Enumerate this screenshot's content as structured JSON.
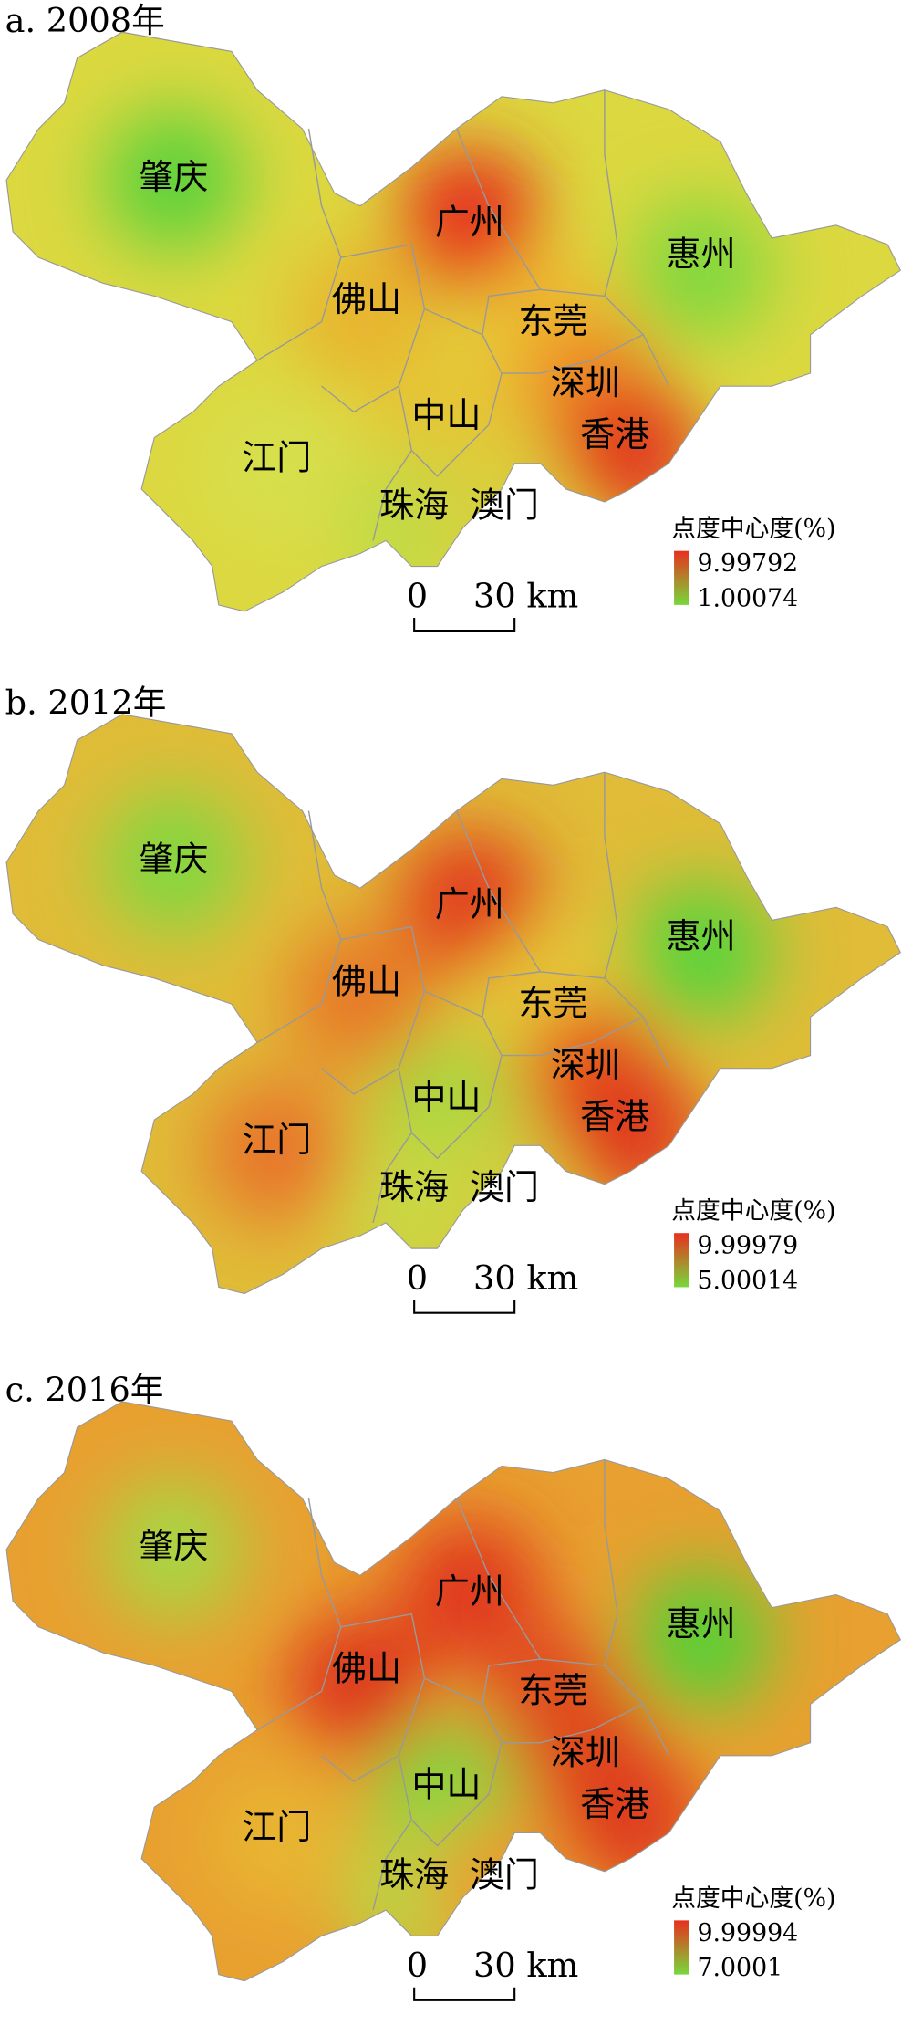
{
  "panels": [
    {
      "title": "a. 2008年",
      "base_color": "#dcd840",
      "cities": [
        {
          "name": "肇庆",
          "color": "#5cd23a"
        },
        {
          "name": "广州",
          "color": "#e62c1c"
        },
        {
          "name": "惠州",
          "color": "#80d83c"
        },
        {
          "name": "佛山",
          "color": "#e8b42e"
        },
        {
          "name": "东莞",
          "color": "#eec032"
        },
        {
          "name": "深圳",
          "color": "#ee8a28"
        },
        {
          "name": "香港",
          "color": "#e2361c"
        },
        {
          "name": "中山",
          "color": "#e6c434"
        },
        {
          "name": "江门",
          "color": "#d6e04e"
        },
        {
          "name": "珠海",
          "color": "#bcdc46"
        },
        {
          "name": "澳门",
          "color": "#d8d03e"
        }
      ],
      "legend": {
        "title": "点度中心度(%)",
        "max": 9.99792,
        "min": 1.00074,
        "colors": [
          "#e8301e",
          "#78d83a"
        ]
      },
      "scale": {
        "start": "0",
        "end": "30 km"
      }
    },
    {
      "title": "b. 2012年",
      "base_color": "#e0bc38",
      "cities": [
        {
          "name": "肇庆",
          "color": "#80d840"
        },
        {
          "name": "广州",
          "color": "#e2381c"
        },
        {
          "name": "惠州",
          "color": "#58d43a"
        },
        {
          "name": "佛山",
          "color": "#e87628"
        },
        {
          "name": "东莞",
          "color": "#e6d43a"
        },
        {
          "name": "深圳",
          "color": "#e6521e"
        },
        {
          "name": "香港",
          "color": "#e0341c"
        },
        {
          "name": "中山",
          "color": "#a6d840"
        },
        {
          "name": "江门",
          "color": "#e8722a"
        },
        {
          "name": "珠海",
          "color": "#c6dc44"
        },
        {
          "name": "澳门",
          "color": "#d0d040"
        }
      ],
      "legend": {
        "title": "点度中心度(%)",
        "max": 9.99979,
        "min": 5.00014,
        "colors": [
          "#e8301e",
          "#78d83a"
        ]
      },
      "scale": {
        "start": "0",
        "end": "30 km"
      }
    },
    {
      "title": "c. 2016年",
      "base_color": "#e8a030",
      "cities": [
        {
          "name": "肇庆",
          "color": "#a6d844"
        },
        {
          "name": "广州",
          "color": "#e0361c"
        },
        {
          "name": "惠州",
          "color": "#56d034"
        },
        {
          "name": "佛山",
          "color": "#de301c"
        },
        {
          "name": "东莞",
          "color": "#e04c20"
        },
        {
          "name": "深圳",
          "color": "#e0481e"
        },
        {
          "name": "香港",
          "color": "#de381c"
        },
        {
          "name": "中山",
          "color": "#7ed840"
        },
        {
          "name": "江门",
          "color": "#e8b630"
        },
        {
          "name": "珠海",
          "color": "#b6d844"
        },
        {
          "name": "澳门",
          "color": "#e89e30"
        }
      ],
      "legend": {
        "title": "点度中心度(%)",
        "max": 9.99994,
        "min": 7.0001,
        "colors": [
          "#e8301e",
          "#78d83a"
        ]
      },
      "scale": {
        "start": "0",
        "end": "30 km"
      }
    }
  ]
}
